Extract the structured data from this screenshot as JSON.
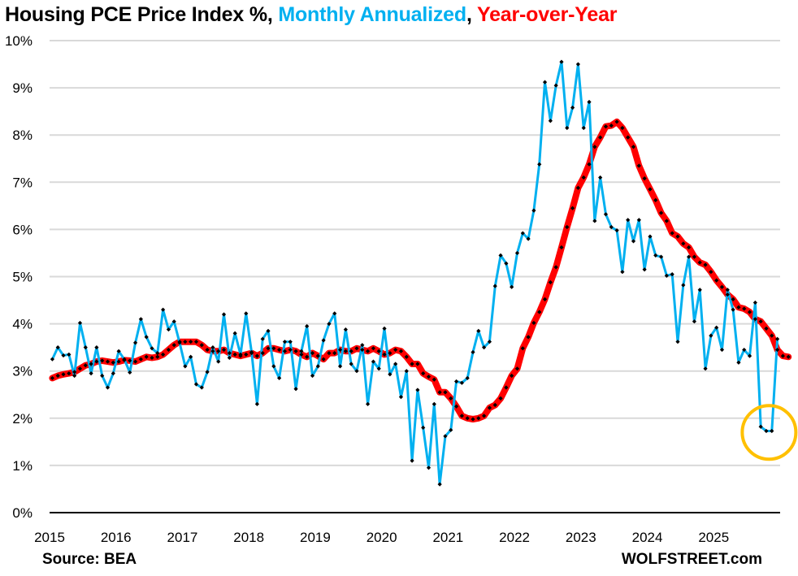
{
  "chart_data": {
    "type": "line",
    "title_parts": [
      {
        "text": "Housing PCE Price Index %, ",
        "color": "#000000"
      },
      {
        "text": "Monthly Annualized",
        "color": "#00B0F0"
      },
      {
        "text": ", ",
        "color": "#000000"
      },
      {
        "text": "Year-over-Year",
        "color": "#FF0000"
      }
    ],
    "xlabel": "",
    "ylabel": "",
    "x_start": "2015-01",
    "x_end": "2025-12",
    "x_tick_labels": [
      "2015",
      "2016",
      "2017",
      "2018",
      "2019",
      "2020",
      "2021",
      "2022",
      "2023",
      "2024",
      "2025"
    ],
    "y_tick_labels": [
      "0%",
      "1%",
      "2%",
      "3%",
      "4%",
      "5%",
      "6%",
      "7%",
      "8%",
      "9%",
      "10%"
    ],
    "ylim": [
      0,
      10
    ],
    "grid": true,
    "series": [
      {
        "name": "Monthly Annualized",
        "color": "#00B0F0",
        "values": [
          3.25,
          3.5,
          3.33,
          3.35,
          2.9,
          4.02,
          3.5,
          2.95,
          3.5,
          2.9,
          2.65,
          2.95,
          3.42,
          3.25,
          2.97,
          3.6,
          4.1,
          3.72,
          3.48,
          3.38,
          4.3,
          3.88,
          4.05,
          3.6,
          3.1,
          3.3,
          2.72,
          2.65,
          2.98,
          3.5,
          3.2,
          4.2,
          3.28,
          3.8,
          3.35,
          4.22,
          3.4,
          2.3,
          3.68,
          3.85,
          3.1,
          2.85,
          3.62,
          3.62,
          2.62,
          3.42,
          3.95,
          2.9,
          3.1,
          3.65,
          4.0,
          4.22,
          3.1,
          3.88,
          3.15,
          3.0,
          3.55,
          2.3,
          3.2,
          3.05,
          3.9,
          2.93,
          3.15,
          2.45,
          3.0,
          1.1,
          2.6,
          1.8,
          0.95,
          2.3,
          0.6,
          1.62,
          1.75,
          2.78,
          2.75,
          2.85,
          3.4,
          3.85,
          3.5,
          3.62,
          4.8,
          5.45,
          5.28,
          4.78,
          5.5,
          5.92,
          5.8,
          6.4,
          7.38,
          9.12,
          8.3,
          9.05,
          9.55,
          8.15,
          8.58,
          9.5,
          8.15,
          8.7,
          6.18,
          7.1,
          6.32,
          6.05,
          5.98,
          5.1,
          6.2,
          5.75,
          6.2,
          5.15,
          5.85,
          5.45,
          5.42,
          5.02,
          5.05,
          3.62,
          4.82,
          5.42,
          4.05,
          4.72,
          3.05,
          3.75,
          3.92,
          3.45,
          4.72,
          4.3,
          3.18,
          3.45,
          3.32,
          4.45,
          1.82,
          1.73,
          1.73,
          3.68
        ]
      },
      {
        "name": "Year-over-Year",
        "color": "#FF0000",
        "values": [
          2.85,
          2.9,
          2.93,
          2.95,
          2.98,
          3.05,
          3.12,
          3.15,
          3.2,
          3.22,
          3.2,
          3.18,
          3.2,
          3.23,
          3.22,
          3.2,
          3.25,
          3.3,
          3.28,
          3.3,
          3.35,
          3.45,
          3.55,
          3.62,
          3.62,
          3.62,
          3.62,
          3.55,
          3.45,
          3.42,
          3.42,
          3.45,
          3.38,
          3.35,
          3.32,
          3.35,
          3.38,
          3.32,
          3.38,
          3.48,
          3.48,
          3.45,
          3.42,
          3.45,
          3.42,
          3.35,
          3.3,
          3.38,
          3.32,
          3.25,
          3.38,
          3.38,
          3.45,
          3.42,
          3.42,
          3.48,
          3.45,
          3.42,
          3.48,
          3.42,
          3.35,
          3.38,
          3.45,
          3.42,
          3.3,
          3.15,
          3.15,
          2.95,
          2.88,
          2.82,
          2.55,
          2.55,
          2.42,
          2.25,
          2.05,
          2.0,
          1.98,
          2.0,
          2.05,
          2.22,
          2.28,
          2.42,
          2.65,
          2.9,
          3.05,
          3.48,
          3.72,
          4.02,
          4.25,
          4.52,
          4.88,
          5.2,
          5.62,
          6.05,
          6.45,
          6.88,
          7.1,
          7.38,
          7.75,
          7.95,
          8.18,
          8.2,
          8.28,
          8.15,
          7.95,
          7.75,
          7.35,
          7.08,
          6.85,
          6.62,
          6.35,
          6.18,
          5.92,
          5.85,
          5.7,
          5.62,
          5.42,
          5.3,
          5.25,
          5.1,
          4.92,
          4.78,
          4.62,
          4.52,
          4.35,
          4.32,
          4.25,
          4.1,
          4.05,
          3.9,
          3.75,
          3.45,
          3.32,
          3.3
        ]
      }
    ],
    "annotations": [
      {
        "type": "circle",
        "color": "#FFC000",
        "label": "highlight on latest monthly annualized dip (~1.7-1.8%)"
      }
    ],
    "markers": {
      "color": "#000000",
      "shape": "diamond"
    }
  },
  "footer": {
    "source": "Source: BEA",
    "brand": "WOLFSTREET.com"
  }
}
